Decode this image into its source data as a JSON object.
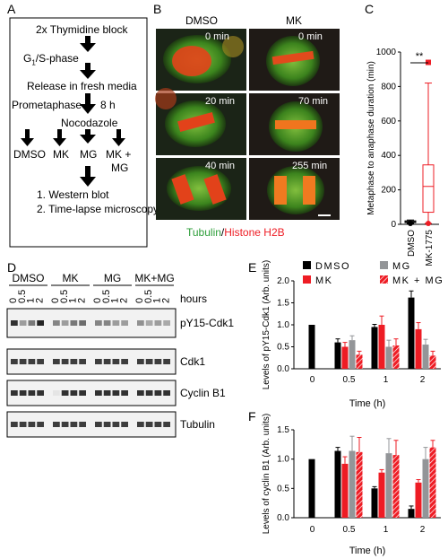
{
  "panels": {
    "a": "A",
    "b": "B",
    "c": "C",
    "d": "D",
    "e": "E",
    "f": "F"
  },
  "schema": {
    "step1": "2x Thymidine block",
    "step2": "G",
    "step2_sub": "1",
    "step2_rest": "/S-phase",
    "step3": "Release in fresh media",
    "step4": "Prometaphase",
    "step4_time": "8 h",
    "step5": "Nocodazole",
    "conditions": [
      "DMSO",
      "MK",
      "MG",
      "MK +",
      "MG"
    ],
    "out1": "1. Western blot",
    "out2": "2. Time-lapse microscopy"
  },
  "micro": {
    "col1": "DMSO",
    "col2": "MK",
    "times_left": [
      "0 min",
      "20 min",
      "40 min"
    ],
    "times_right": [
      "0 min",
      "70 min",
      "255 min"
    ],
    "legend_green": "Tubulin",
    "legend_sep": "/",
    "legend_red": "Histone H2B"
  },
  "panelC_chart": {
    "type": "box",
    "ylabel": "Metaphase to anaphase duration (min)",
    "ylim": [
      0,
      1000
    ],
    "yticks": [
      "0",
      "200",
      "400",
      "600",
      "800",
      "1000"
    ],
    "categories": [
      "DMSO",
      "MK-1775"
    ],
    "significance": "**",
    "boxes": [
      {
        "name": "DMSO",
        "min": 5,
        "q1": 10,
        "median": 15,
        "q3": 20,
        "max": 25
      },
      {
        "name": "MK-1775",
        "min": 5,
        "q1": 70,
        "median": 220,
        "q3": 345,
        "max": 820,
        "outlier": 940
      }
    ],
    "colors": {
      "DMSO": "#000000",
      "MK-1775": "#ee1c24"
    }
  },
  "blot": {
    "groups": [
      "DMSO",
      "MK",
      "MG",
      "MK+MG"
    ],
    "times": [
      "0",
      "0.5",
      "1",
      "2"
    ],
    "hours_label": "hours",
    "rows": [
      "pY15-Cdk1",
      "Cdk1",
      "Cyclin B1",
      "Tubulin"
    ]
  },
  "chart_data": [
    {
      "type": "bar",
      "title": "",
      "xlabel": "Time (h)",
      "ylabel": "Levels of pY15-Cdk1 (Arb. units)",
      "categories": [
        "0",
        "0.5",
        "1",
        "2"
      ],
      "ylim": [
        0,
        2.0
      ],
      "yticks": [
        "0.0",
        "0.5",
        "1.0",
        "1.5",
        "2.0"
      ],
      "legend": [
        "DMSO",
        "MG",
        "MK",
        "MK + MG"
      ],
      "series": [
        {
          "name": "DMSO",
          "color": "#000000",
          "values": [
            1.0,
            0.6,
            0.95,
            1.62
          ],
          "errors": [
            0,
            0.08,
            0.06,
            0.15
          ]
        },
        {
          "name": "MK",
          "color": "#ee1c24",
          "values": [
            null,
            0.5,
            1.0,
            0.9
          ],
          "errors": [
            0,
            0.1,
            0.2,
            0.15
          ]
        },
        {
          "name": "MG",
          "color": "#939598",
          "values": [
            null,
            0.65,
            0.5,
            0.55
          ],
          "errors": [
            0,
            0.1,
            0.15,
            0.12
          ]
        },
        {
          "name": "MK + MG",
          "color": "#ee1c24",
          "hatched": true,
          "values": [
            null,
            0.32,
            0.53,
            0.3
          ],
          "errors": [
            0,
            0.08,
            0.15,
            0.1
          ]
        }
      ],
      "annotations": [
        "*",
        "*",
        "**",
        "*"
      ]
    },
    {
      "type": "bar",
      "title": "",
      "xlabel": "Time (h)",
      "ylabel": "Levels of cyclin B1 (Arb. units)",
      "categories": [
        "0",
        "0.5",
        "1",
        "2"
      ],
      "ylim": [
        0,
        1.5
      ],
      "yticks": [
        "0.0",
        "0.5",
        "1.0",
        "1.5"
      ],
      "series": [
        {
          "name": "DMSO",
          "color": "#000000",
          "values": [
            1.0,
            1.14,
            0.5,
            0.15
          ],
          "errors": [
            0,
            0.06,
            0.03,
            0.05
          ]
        },
        {
          "name": "MK",
          "color": "#ee1c24",
          "values": [
            null,
            0.92,
            0.77,
            0.6
          ],
          "errors": [
            0,
            0.12,
            0.05,
            0.05
          ]
        },
        {
          "name": "MG",
          "color": "#939598",
          "values": [
            null,
            1.14,
            1.1,
            1.0
          ],
          "errors": [
            0,
            0.25,
            0.25,
            0.2
          ]
        },
        {
          "name": "MK + MG",
          "color": "#ee1c24",
          "hatched": true,
          "values": [
            null,
            1.12,
            1.07,
            1.2
          ],
          "errors": [
            0,
            0.25,
            0.25,
            0.12
          ]
        }
      ],
      "annotations": [
        "*",
        "*",
        "*",
        "***",
        "*",
        "*"
      ]
    }
  ]
}
